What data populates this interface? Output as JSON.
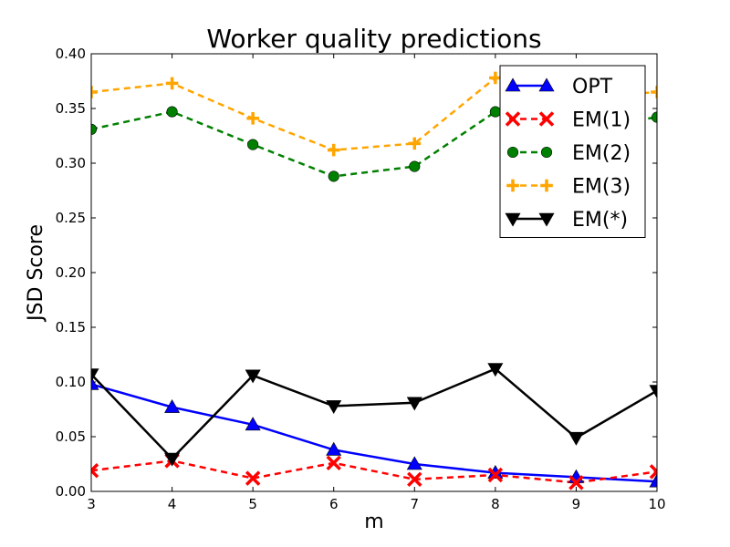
{
  "chart_data": {
    "type": "line",
    "title": "Worker quality predictions",
    "xlabel": "m",
    "ylabel": "JSD Score",
    "x": [
      3,
      4,
      5,
      6,
      7,
      8,
      9,
      10
    ],
    "xlim": [
      3,
      10
    ],
    "ylim": [
      0.0,
      0.4
    ],
    "xticks": [
      "3",
      "4",
      "5",
      "6",
      "7",
      "8",
      "9",
      "10"
    ],
    "yticks": [
      "0.00",
      "0.05",
      "0.10",
      "0.15",
      "0.20",
      "0.25",
      "0.30",
      "0.35",
      "0.40"
    ],
    "grid": false,
    "legend_position": "top-right",
    "series": [
      {
        "name": "OPT",
        "color": "#0000ff",
        "dashed": false,
        "marker": "triangle-up",
        "values": [
          0.098,
          0.077,
          0.061,
          0.038,
          0.025,
          0.017,
          0.013,
          0.009
        ]
      },
      {
        "name": "EM(1)",
        "color": "#ff0000",
        "dashed": true,
        "marker": "x",
        "values": [
          0.019,
          0.028,
          0.012,
          0.026,
          0.011,
          0.015,
          0.008,
          0.018
        ]
      },
      {
        "name": "EM(2)",
        "color": "#008000",
        "dashed": true,
        "marker": "circle",
        "values": [
          0.331,
          0.347,
          0.317,
          0.288,
          0.297,
          0.347,
          0.331,
          0.342
        ]
      },
      {
        "name": "EM(3)",
        "color": "#ffa500",
        "dashed": true,
        "marker": "plus",
        "values": [
          0.365,
          0.373,
          0.341,
          0.312,
          0.318,
          0.378,
          0.36,
          0.365
        ]
      },
      {
        "name": "EM(*)",
        "color": "#000000",
        "dashed": false,
        "marker": "triangle-down",
        "values": [
          0.107,
          0.03,
          0.106,
          0.078,
          0.081,
          0.112,
          0.049,
          0.092
        ]
      }
    ]
  }
}
